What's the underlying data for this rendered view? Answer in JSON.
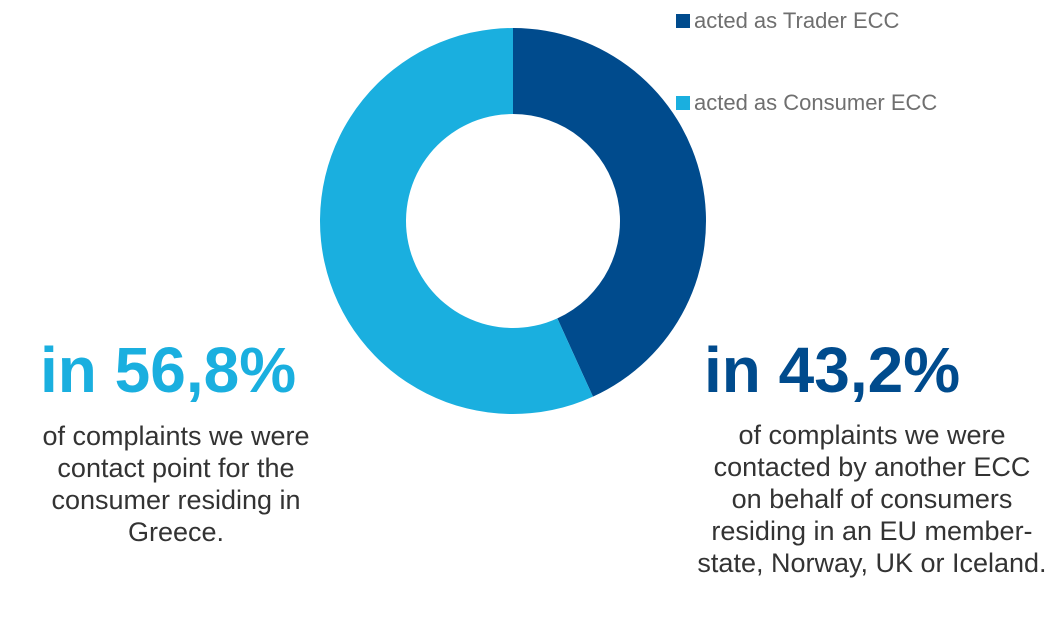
{
  "chart_data": {
    "type": "pie",
    "donut": true,
    "series": [
      {
        "name": "acted as Trader ECC",
        "value": 43.2,
        "color": "#004b8d"
      },
      {
        "name": "acted as Consumer ECC",
        "value": 56.8,
        "color": "#1aafdf"
      }
    ],
    "legend_position": "top-right"
  },
  "legend": [
    {
      "label": "acted as Trader ECC",
      "color": "#004b8d"
    },
    {
      "label": "acted as Consumer ECC",
      "color": "#1aafdf"
    }
  ],
  "left_stat": {
    "headline": "in 56,8%",
    "caption": "of complaints we were contact point for the consumer residing in Greece."
  },
  "right_stat": {
    "headline": "in 43,2%",
    "caption": "of complaints we were contacted by another ECC on behalf of consumers residing in an EU member-state, Norway, UK or Iceland."
  }
}
